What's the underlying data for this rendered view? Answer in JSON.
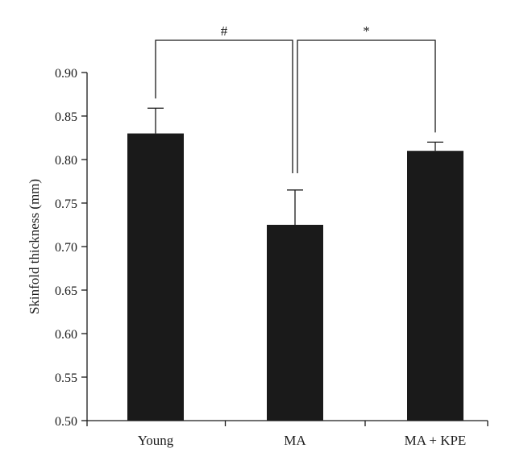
{
  "chart_data": {
    "type": "bar",
    "categories": [
      "Young",
      "MA",
      "MA + KPE"
    ],
    "values": [
      0.83,
      0.725,
      0.81
    ],
    "errors": [
      0.029,
      0.04,
      0.01
    ],
    "ylabel": "Skinfold thickness (mm)",
    "xlabel": "",
    "ylim": [
      0.5,
      0.9
    ],
    "yticks": [
      "0.50",
      "0.55",
      "0.60",
      "0.65",
      "0.70",
      "0.75",
      "0.80",
      "0.85",
      "0.90"
    ],
    "grid": false,
    "bar_color": "#1a1a1a",
    "significance": [
      {
        "label": "#",
        "from": "Young",
        "to": "MA"
      },
      {
        "label": "*",
        "from": "MA",
        "to": "MA + KPE"
      }
    ]
  }
}
